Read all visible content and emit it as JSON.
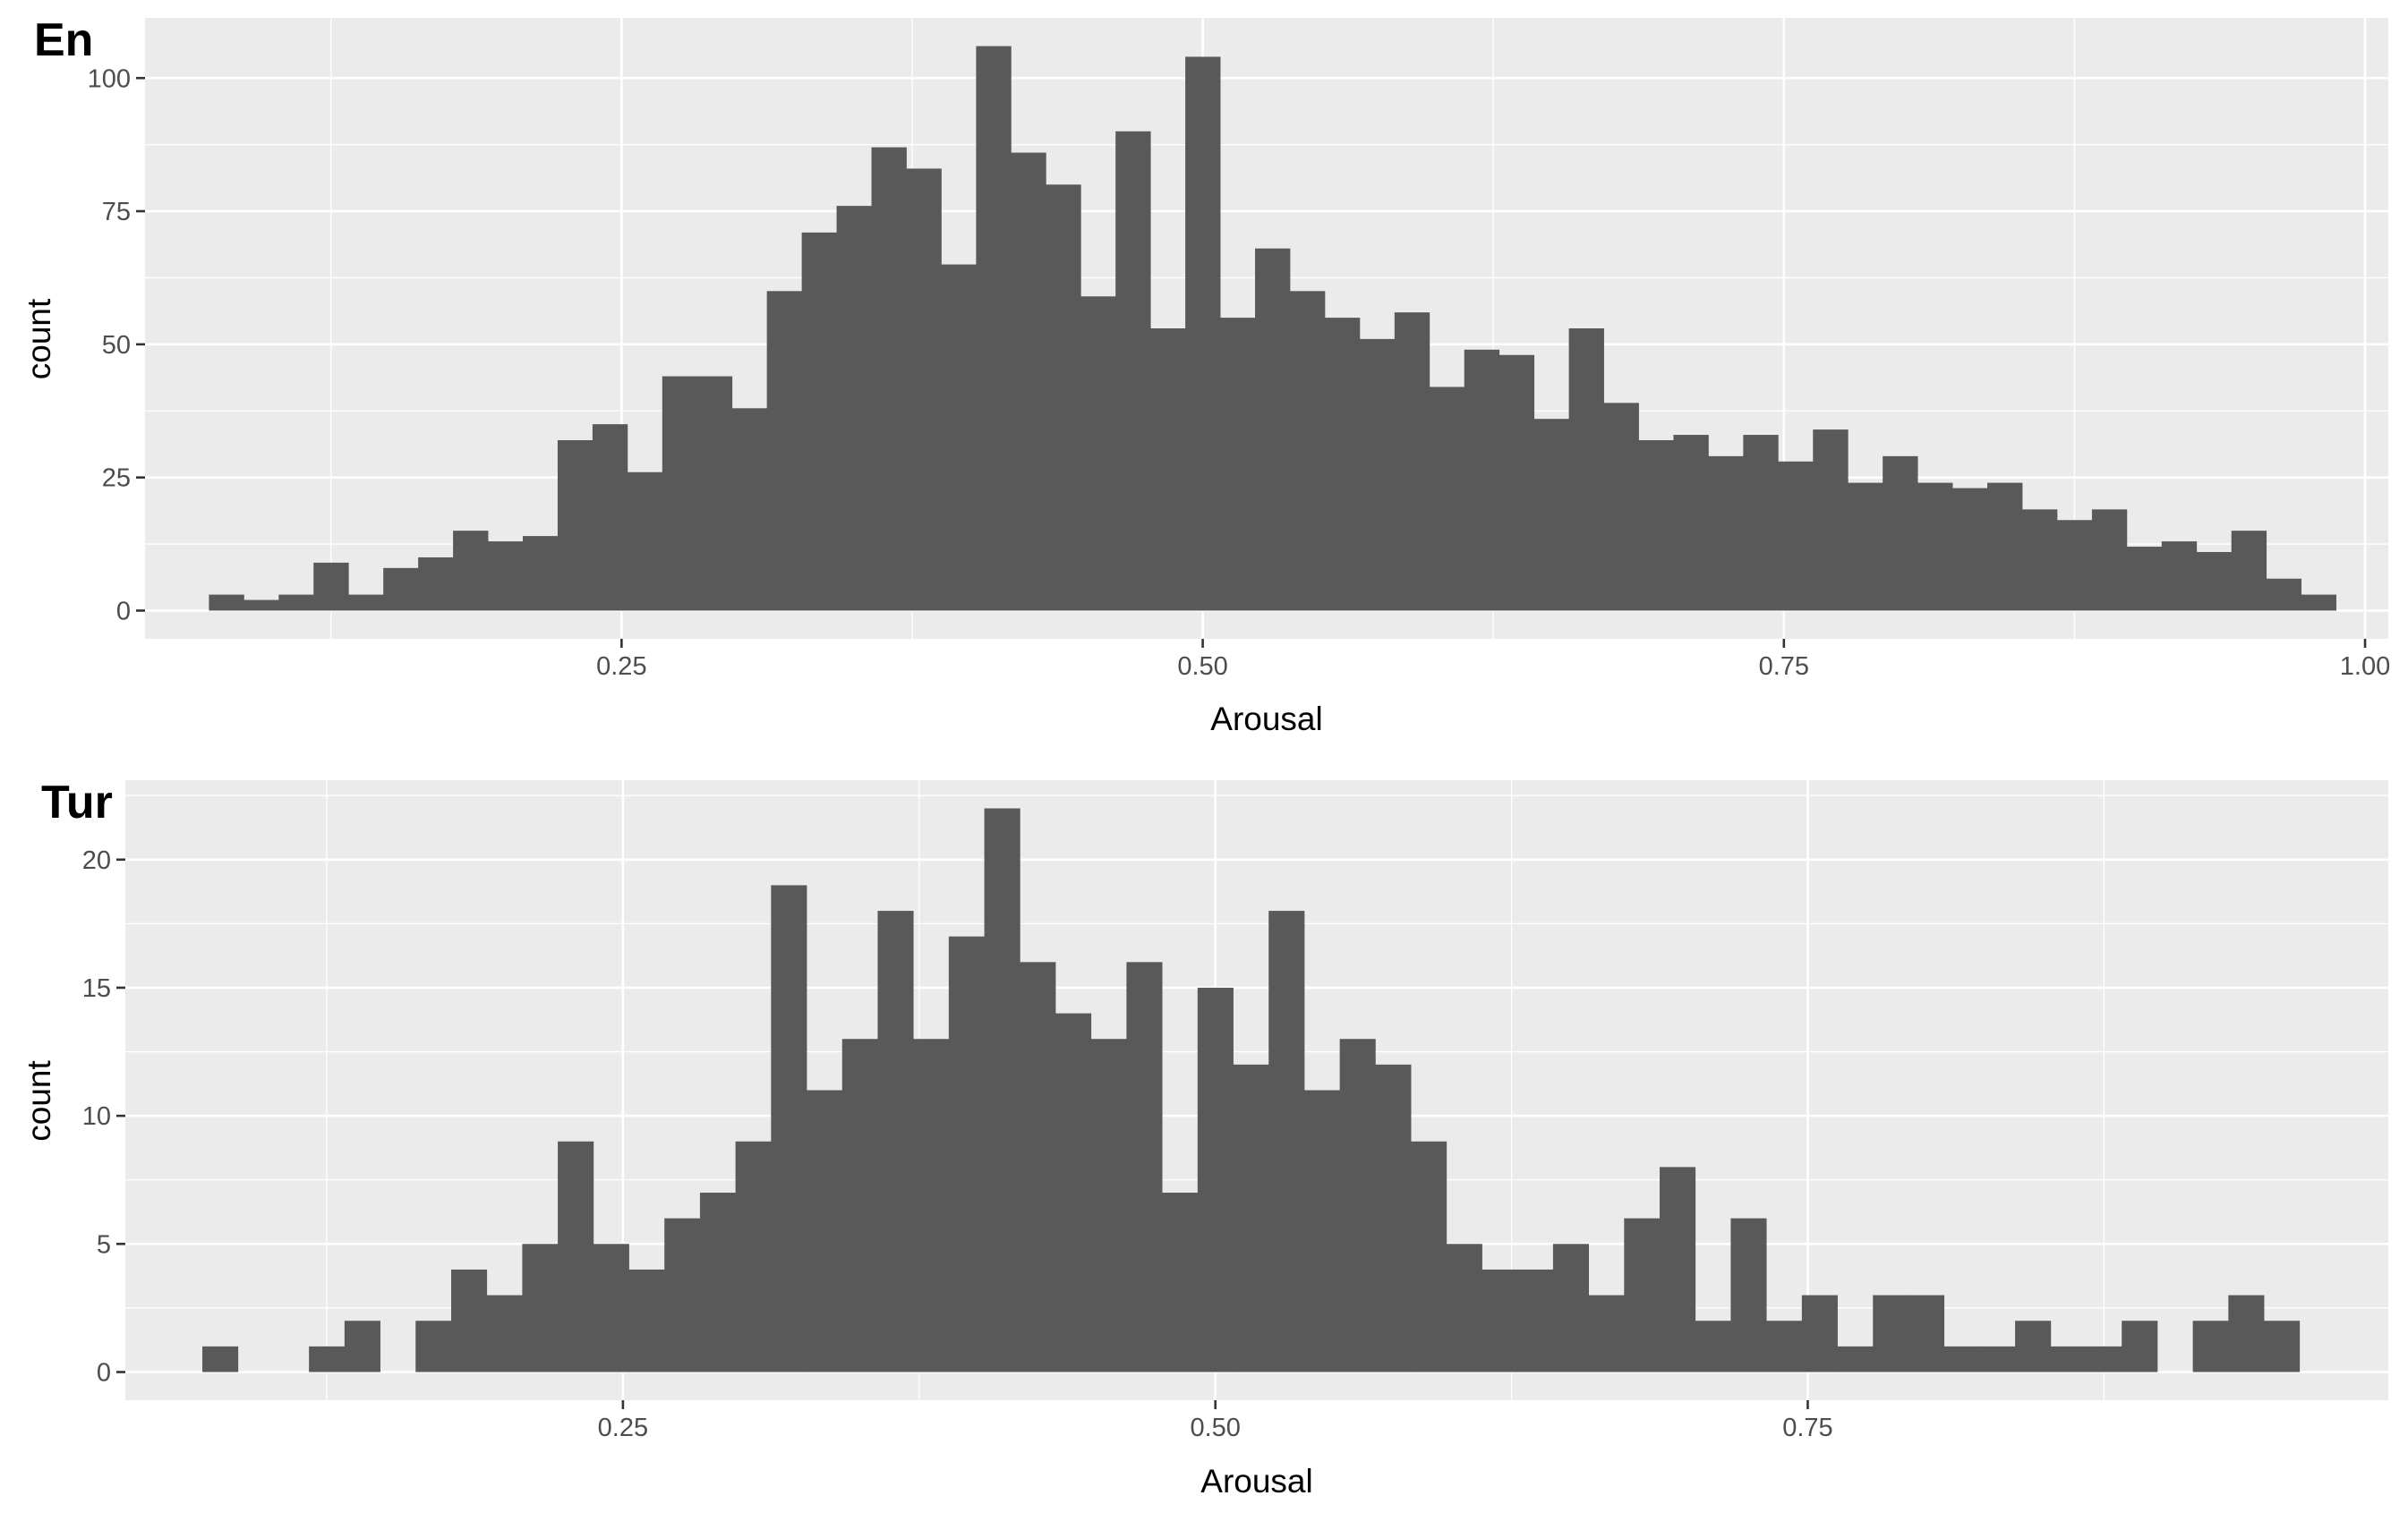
{
  "chart_data": [
    {
      "type": "bar",
      "tag": "En",
      "xlabel": "Arousal",
      "ylabel": "count",
      "xlim": [
        0.045,
        1.01
      ],
      "ylim": [
        -5.3,
        111.3
      ],
      "x_ticks": [
        0.25,
        0.5,
        0.75,
        1.0
      ],
      "x_tick_labels": [
        "0.25",
        "0.50",
        "0.75",
        "1.00"
      ],
      "y_ticks": [
        0,
        25,
        50,
        75,
        100
      ],
      "y_tick_labels": [
        "0",
        "25",
        "50",
        "75",
        "100"
      ],
      "bin_start": 0.0725,
      "bin_width": 0.015,
      "values": [
        3,
        2,
        3,
        9,
        3,
        8,
        10,
        15,
        13,
        14,
        32,
        35,
        26,
        44,
        44,
        38,
        60,
        71,
        76,
        87,
        83,
        65,
        106,
        86,
        80,
        59,
        90,
        53,
        104,
        55,
        68,
        60,
        55,
        51,
        56,
        42,
        49,
        48,
        36,
        53,
        39,
        32,
        33,
        29,
        33,
        28,
        34,
        24,
        29,
        24,
        23,
        24,
        19,
        17,
        19,
        12,
        13,
        11,
        15,
        6,
        3
      ]
    },
    {
      "type": "bar",
      "tag": "Tur",
      "xlabel": "Arousal",
      "ylabel": "count",
      "xlim": [
        0.04,
        0.995
      ],
      "ylim": [
        -1.1,
        23.1
      ],
      "x_ticks": [
        0.25,
        0.5,
        0.75
      ],
      "x_tick_labels": [
        "0.25",
        "0.50",
        "0.75"
      ],
      "y_ticks": [
        0,
        5,
        10,
        15,
        20
      ],
      "y_tick_labels": [
        "0",
        "5",
        "10",
        "15",
        "20"
      ],
      "bin_start": 0.0725,
      "bin_width": 0.015,
      "values": [
        1,
        0,
        0,
        1,
        2,
        0,
        2,
        4,
        3,
        5,
        9,
        5,
        4,
        6,
        7,
        9,
        19,
        11,
        13,
        18,
        13,
        17,
        22,
        16,
        14,
        13,
        16,
        7,
        15,
        12,
        18,
        11,
        13,
        12,
        9,
        5,
        4,
        4,
        5,
        3,
        6,
        8,
        2,
        6,
        2,
        3,
        1,
        3,
        3,
        1,
        1,
        2,
        1,
        1,
        2,
        0,
        2,
        3,
        2
      ]
    }
  ]
}
